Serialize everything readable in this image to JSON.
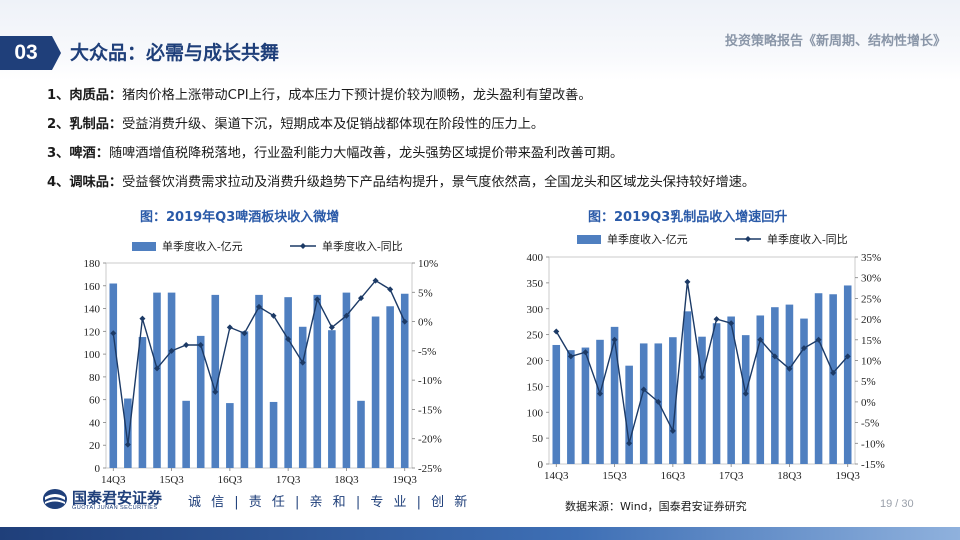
{
  "header": {
    "section_number": "03",
    "section_title": "大众品：必需与成长共舞",
    "report_title": "投资策略报告《新周期、结构性增长》"
  },
  "bullets": [
    {
      "label": "1、肉质品：",
      "text": "猪肉价格上涨带动CPI上行，成本压力下预计提价较为顺畅，龙头盈利有望改善。"
    },
    {
      "label": "2、乳制品：",
      "text": "受益消费升级、渠道下沉，短期成本及促销战都体现在阶段性的压力上。"
    },
    {
      "label": "3、啤酒：",
      "text": "随啤酒增值税降税落地，行业盈利能力大幅改善，龙头强势区域提价带来盈利改善可期。"
    },
    {
      "label": "4、调味品：",
      "text": "受益餐饮消费需求拉动及消费升级趋势下产品结构提升，景气度依然高，全国龙头和区域龙头保持较好增速。"
    }
  ],
  "figures": {
    "left_title": "图：2019年Q3啤酒板块收入微增",
    "right_title": "图：2019Q3乳制品收入增速回升"
  },
  "chart_data": [
    {
      "type": "bar",
      "title": "",
      "categories": [
        "14Q3",
        "14Q4",
        "15Q1",
        "15Q2",
        "15Q3",
        "15Q4",
        "16Q1",
        "16Q2",
        "16Q3",
        "16Q4",
        "17Q1",
        "17Q2",
        "17Q3",
        "17Q4",
        "18Q1",
        "18Q2",
        "18Q3",
        "18Q4",
        "19Q1",
        "19Q2",
        "19Q3"
      ],
      "x_tick_labels": [
        "14Q3",
        "15Q3",
        "16Q3",
        "17Q3",
        "18Q3",
        "19Q3"
      ],
      "series": [
        {
          "name": "单季度收入-亿元",
          "type": "bar",
          "axis": "left",
          "values": [
            162,
            61,
            115,
            154,
            154,
            59,
            116,
            152,
            57,
            120,
            152,
            58,
            150,
            124,
            152,
            121,
            154,
            59,
            133,
            142,
            153
          ]
        },
        {
          "name": "单季度收入-同比",
          "type": "line",
          "axis": "right",
          "unit": "%",
          "values": [
            -2,
            -21,
            0.5,
            -8,
            -5,
            -4,
            -4,
            -12,
            -1,
            -2,
            2.5,
            1,
            -3,
            -7,
            3.8,
            -1,
            1,
            4,
            7,
            5.5,
            0
          ]
        }
      ],
      "y_left": {
        "min": 0,
        "max": 180,
        "ticks": [
          0,
          20,
          40,
          60,
          80,
          100,
          120,
          140,
          160,
          180
        ]
      },
      "y_right": {
        "min": -25,
        "max": 10,
        "ticks": [
          "-25%",
          "-20%",
          "-15%",
          "-10%",
          "-5%",
          "0%",
          "5%",
          "10%"
        ],
        "tick_values": [
          -25,
          -20,
          -15,
          -10,
          -5,
          0,
          5,
          10
        ]
      },
      "legend": "top",
      "colors": {
        "bar": "#4f7fc0",
        "line": "#1c3a66"
      }
    },
    {
      "type": "bar",
      "title": "",
      "categories": [
        "14Q3",
        "14Q4",
        "15Q1",
        "15Q2",
        "15Q3",
        "15Q4",
        "16Q1",
        "16Q2",
        "16Q3",
        "16Q4",
        "17Q1",
        "17Q2",
        "17Q3",
        "17Q4",
        "18Q1",
        "18Q2",
        "18Q3",
        "18Q4",
        "19Q1",
        "19Q2",
        "19Q3"
      ],
      "x_tick_labels": [
        "14Q3",
        "15Q3",
        "16Q3",
        "17Q3",
        "18Q3",
        "19Q3"
      ],
      "series": [
        {
          "name": "单季度收入-亿元",
          "type": "bar",
          "axis": "left",
          "values": [
            230,
            220,
            225,
            240,
            265,
            190,
            233,
            233,
            245,
            295,
            246,
            272,
            285,
            249,
            287,
            303,
            308,
            281,
            330,
            328,
            345
          ]
        },
        {
          "name": "单季度收入-同比",
          "type": "line",
          "axis": "right",
          "unit": "%",
          "values": [
            17,
            11,
            12,
            2,
            15,
            -10,
            3,
            0,
            -7,
            29,
            6,
            20,
            19,
            2,
            15,
            11,
            8,
            13,
            15,
            7,
            11
          ]
        }
      ],
      "y_left": {
        "min": 0,
        "max": 400,
        "ticks": [
          0,
          50,
          100,
          150,
          200,
          250,
          300,
          350,
          400
        ]
      },
      "y_right": {
        "min": -15,
        "max": 35,
        "ticks": [
          "-15%",
          "-10%",
          "-5%",
          "0%",
          "5%",
          "10%",
          "15%",
          "20%",
          "25%",
          "30%",
          "35%"
        ],
        "tick_values": [
          -15,
          -10,
          -5,
          0,
          5,
          10,
          15,
          20,
          25,
          30,
          35
        ]
      },
      "legend": "top",
      "colors": {
        "bar": "#4f7fc0",
        "line": "#1c3a66"
      }
    }
  ],
  "footer": {
    "company_cn": "国泰君安证券",
    "company_en": "GUOTAI JUNAN SECURITIES",
    "slogan": "诚 信 | 责 任 | 亲 和 | 专 业 | 创 新",
    "source": "数据来源：Wind，国泰君安证券研究",
    "page": "19 / 30"
  },
  "colors": {
    "brand_blue": "#1f3f7a",
    "accent_blue": "#2a5aa8",
    "bar_blue": "#4f7fc0"
  }
}
